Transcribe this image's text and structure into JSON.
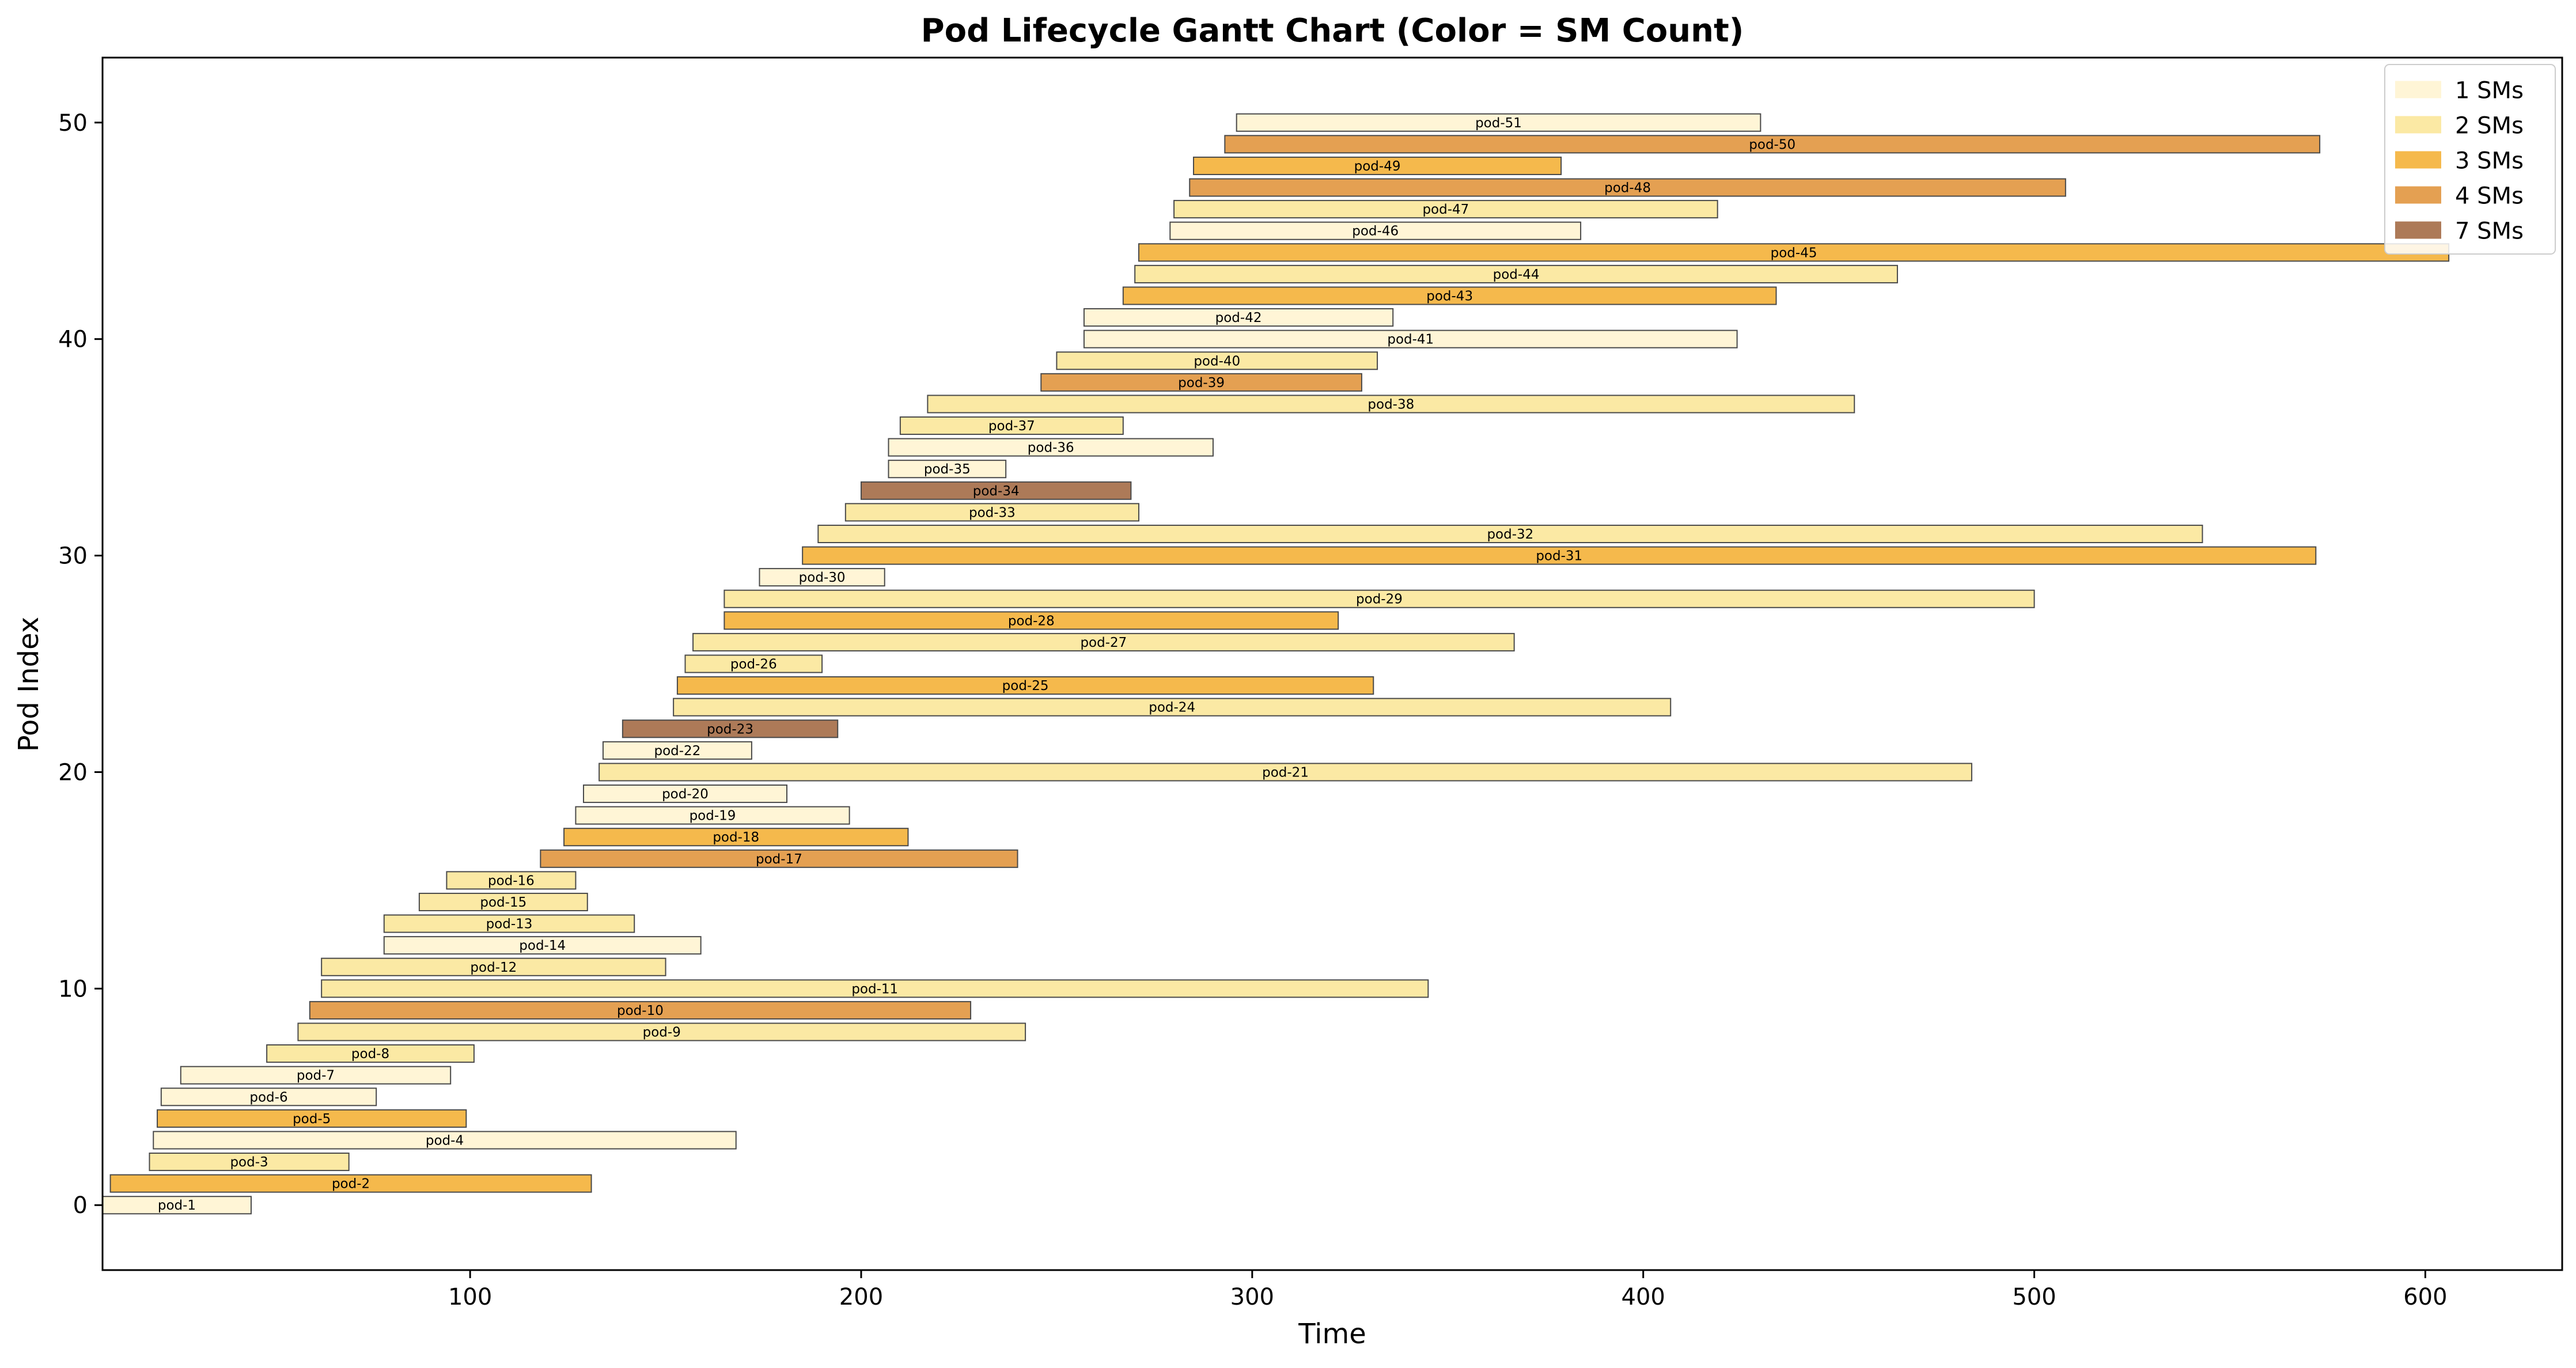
{
  "chart_data": {
    "type": "gantt",
    "title": "Pod Lifecycle Gantt Chart (Color = SM Count)",
    "xlabel": "Time",
    "ylabel": "Pod Index",
    "xlim": [
      6,
      635
    ],
    "ylim": [
      -3,
      53
    ],
    "xticks": [
      100,
      200,
      300,
      400,
      500,
      600
    ],
    "yticks": [
      0,
      10,
      20,
      30,
      40,
      50
    ],
    "grid": false,
    "legend_position": "top-right",
    "legend": [
      {
        "label": "1 SMs",
        "color": "#fff5d6"
      },
      {
        "label": "2 SMs",
        "color": "#fbe9a4"
      },
      {
        "label": "3 SMs",
        "color": "#f5b94c"
      },
      {
        "label": "4 SMs",
        "color": "#e4a052"
      },
      {
        "label": "7 SMs",
        "color": "#ad7a58"
      }
    ],
    "pods": [
      {
        "name": "pod-1",
        "index": 0,
        "start": 6,
        "end": 44,
        "sm": 1
      },
      {
        "name": "pod-2",
        "index": 1,
        "start": 8,
        "end": 131,
        "sm": 3
      },
      {
        "name": "pod-3",
        "index": 2,
        "start": 18,
        "end": 69,
        "sm": 2
      },
      {
        "name": "pod-4",
        "index": 3,
        "start": 19,
        "end": 168,
        "sm": 1
      },
      {
        "name": "pod-5",
        "index": 4,
        "start": 20,
        "end": 99,
        "sm": 3
      },
      {
        "name": "pod-6",
        "index": 5,
        "start": 21,
        "end": 76,
        "sm": 1
      },
      {
        "name": "pod-7",
        "index": 6,
        "start": 26,
        "end": 95,
        "sm": 1
      },
      {
        "name": "pod-8",
        "index": 7,
        "start": 48,
        "end": 101,
        "sm": 2
      },
      {
        "name": "pod-9",
        "index": 8,
        "start": 56,
        "end": 242,
        "sm": 2
      },
      {
        "name": "pod-10",
        "index": 9,
        "start": 59,
        "end": 228,
        "sm": 4
      },
      {
        "name": "pod-11",
        "index": 10,
        "start": 62,
        "end": 345,
        "sm": 2
      },
      {
        "name": "pod-12",
        "index": 11,
        "start": 62,
        "end": 150,
        "sm": 2
      },
      {
        "name": "pod-14",
        "index": 12,
        "start": 78,
        "end": 159,
        "sm": 1
      },
      {
        "name": "pod-13",
        "index": 13,
        "start": 78,
        "end": 142,
        "sm": 2
      },
      {
        "name": "pod-15",
        "index": 14,
        "start": 87,
        "end": 130,
        "sm": 2
      },
      {
        "name": "pod-16",
        "index": 15,
        "start": 94,
        "end": 127,
        "sm": 2
      },
      {
        "name": "pod-17",
        "index": 16,
        "start": 118,
        "end": 240,
        "sm": 4
      },
      {
        "name": "pod-18",
        "index": 17,
        "start": 124,
        "end": 212,
        "sm": 3
      },
      {
        "name": "pod-19",
        "index": 18,
        "start": 127,
        "end": 197,
        "sm": 1
      },
      {
        "name": "pod-20",
        "index": 19,
        "start": 129,
        "end": 181,
        "sm": 1
      },
      {
        "name": "pod-21",
        "index": 20,
        "start": 133,
        "end": 484,
        "sm": 2
      },
      {
        "name": "pod-22",
        "index": 21,
        "start": 134,
        "end": 172,
        "sm": 1
      },
      {
        "name": "pod-23",
        "index": 22,
        "start": 139,
        "end": 194,
        "sm": 7
      },
      {
        "name": "pod-24",
        "index": 23,
        "start": 152,
        "end": 407,
        "sm": 2
      },
      {
        "name": "pod-25",
        "index": 24,
        "start": 153,
        "end": 331,
        "sm": 3
      },
      {
        "name": "pod-26",
        "index": 25,
        "start": 155,
        "end": 190,
        "sm": 2
      },
      {
        "name": "pod-27",
        "index": 26,
        "start": 157,
        "end": 367,
        "sm": 2
      },
      {
        "name": "pod-28",
        "index": 27,
        "start": 165,
        "end": 322,
        "sm": 3
      },
      {
        "name": "pod-29",
        "index": 28,
        "start": 165,
        "end": 500,
        "sm": 2
      },
      {
        "name": "pod-30",
        "index": 29,
        "start": 174,
        "end": 206,
        "sm": 1
      },
      {
        "name": "pod-31",
        "index": 30,
        "start": 185,
        "end": 572,
        "sm": 3
      },
      {
        "name": "pod-32",
        "index": 31,
        "start": 189,
        "end": 543,
        "sm": 2
      },
      {
        "name": "pod-33",
        "index": 32,
        "start": 196,
        "end": 271,
        "sm": 2
      },
      {
        "name": "pod-34",
        "index": 33,
        "start": 200,
        "end": 269,
        "sm": 7
      },
      {
        "name": "pod-35",
        "index": 34,
        "start": 207,
        "end": 237,
        "sm": 1
      },
      {
        "name": "pod-36",
        "index": 35,
        "start": 207,
        "end": 290,
        "sm": 1
      },
      {
        "name": "pod-37",
        "index": 36,
        "start": 210,
        "end": 267,
        "sm": 2
      },
      {
        "name": "pod-38",
        "index": 37,
        "start": 217,
        "end": 454,
        "sm": 2
      },
      {
        "name": "pod-39",
        "index": 38,
        "start": 246,
        "end": 328,
        "sm": 4
      },
      {
        "name": "pod-40",
        "index": 39,
        "start": 250,
        "end": 332,
        "sm": 2
      },
      {
        "name": "pod-41",
        "index": 40,
        "start": 257,
        "end": 424,
        "sm": 1
      },
      {
        "name": "pod-42",
        "index": 41,
        "start": 257,
        "end": 336,
        "sm": 1
      },
      {
        "name": "pod-43",
        "index": 42,
        "start": 267,
        "end": 434,
        "sm": 3
      },
      {
        "name": "pod-44",
        "index": 43,
        "start": 270,
        "end": 465,
        "sm": 2
      },
      {
        "name": "pod-45",
        "index": 44,
        "start": 271,
        "end": 606,
        "sm": 3
      },
      {
        "name": "pod-46",
        "index": 45,
        "start": 279,
        "end": 384,
        "sm": 1
      },
      {
        "name": "pod-47",
        "index": 46,
        "start": 280,
        "end": 419,
        "sm": 2
      },
      {
        "name": "pod-48",
        "index": 47,
        "start": 284,
        "end": 508,
        "sm": 4
      },
      {
        "name": "pod-49",
        "index": 48,
        "start": 285,
        "end": 379,
        "sm": 3
      },
      {
        "name": "pod-50",
        "index": 49,
        "start": 293,
        "end": 573,
        "sm": 4
      },
      {
        "name": "pod-51",
        "index": 50,
        "start": 296,
        "end": 430,
        "sm": 1
      }
    ]
  }
}
